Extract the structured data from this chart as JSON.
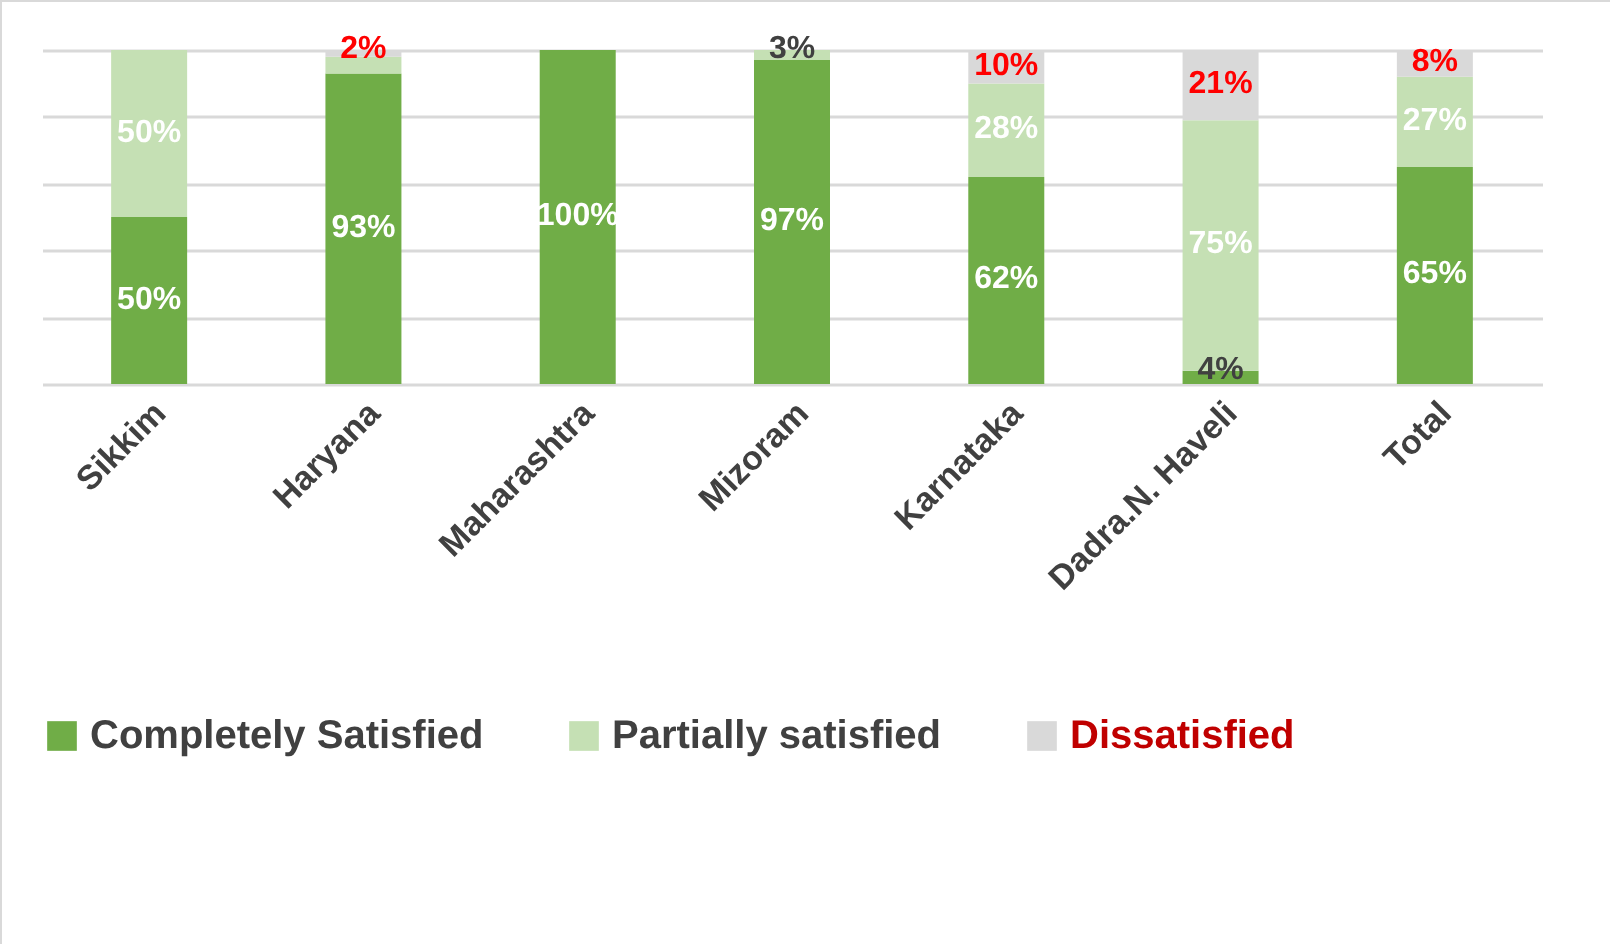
{
  "chart_data": {
    "type": "bar",
    "stacked": true,
    "categories": [
      "Sikkim",
      "Haryana",
      "Maharashtra",
      "Mizoram",
      "Karnataka",
      "Dadra.N. Haveli",
      "Total"
    ],
    "series": [
      {
        "name": "Completely Satisfied",
        "color": "#70ad47",
        "values": [
          50,
          93,
          100,
          97,
          62,
          4,
          65
        ],
        "value_labels": [
          "50%",
          "93%",
          "100%",
          "97%",
          "62%",
          "4%",
          "65%"
        ]
      },
      {
        "name": "Partially satisfied",
        "color": "#c5e0b4",
        "values": [
          50,
          5,
          0,
          3,
          28,
          75,
          27
        ],
        "value_labels": [
          "50%",
          null,
          null,
          "3%",
          "28%",
          "75%",
          "27%"
        ]
      },
      {
        "name": "Dissatisfied",
        "color": "#d9d9d9",
        "values": [
          0,
          2,
          0,
          0,
          10,
          21,
          8
        ],
        "value_labels": [
          null,
          "2%",
          null,
          null,
          "10%",
          "21%",
          "8%"
        ]
      }
    ],
    "ylim": [
      0,
      100
    ],
    "yticks": [
      {
        "value": 0,
        "label": null
      },
      {
        "value": 20,
        "label": null
      },
      {
        "value": 40,
        "label": null
      },
      {
        "value": 60,
        "label": null
      },
      {
        "value": 80,
        "label": null
      },
      {
        "value": 100,
        "label": null
      }
    ],
    "grid": "y",
    "tick_labels": "x",
    "legend": "bottom"
  }
}
